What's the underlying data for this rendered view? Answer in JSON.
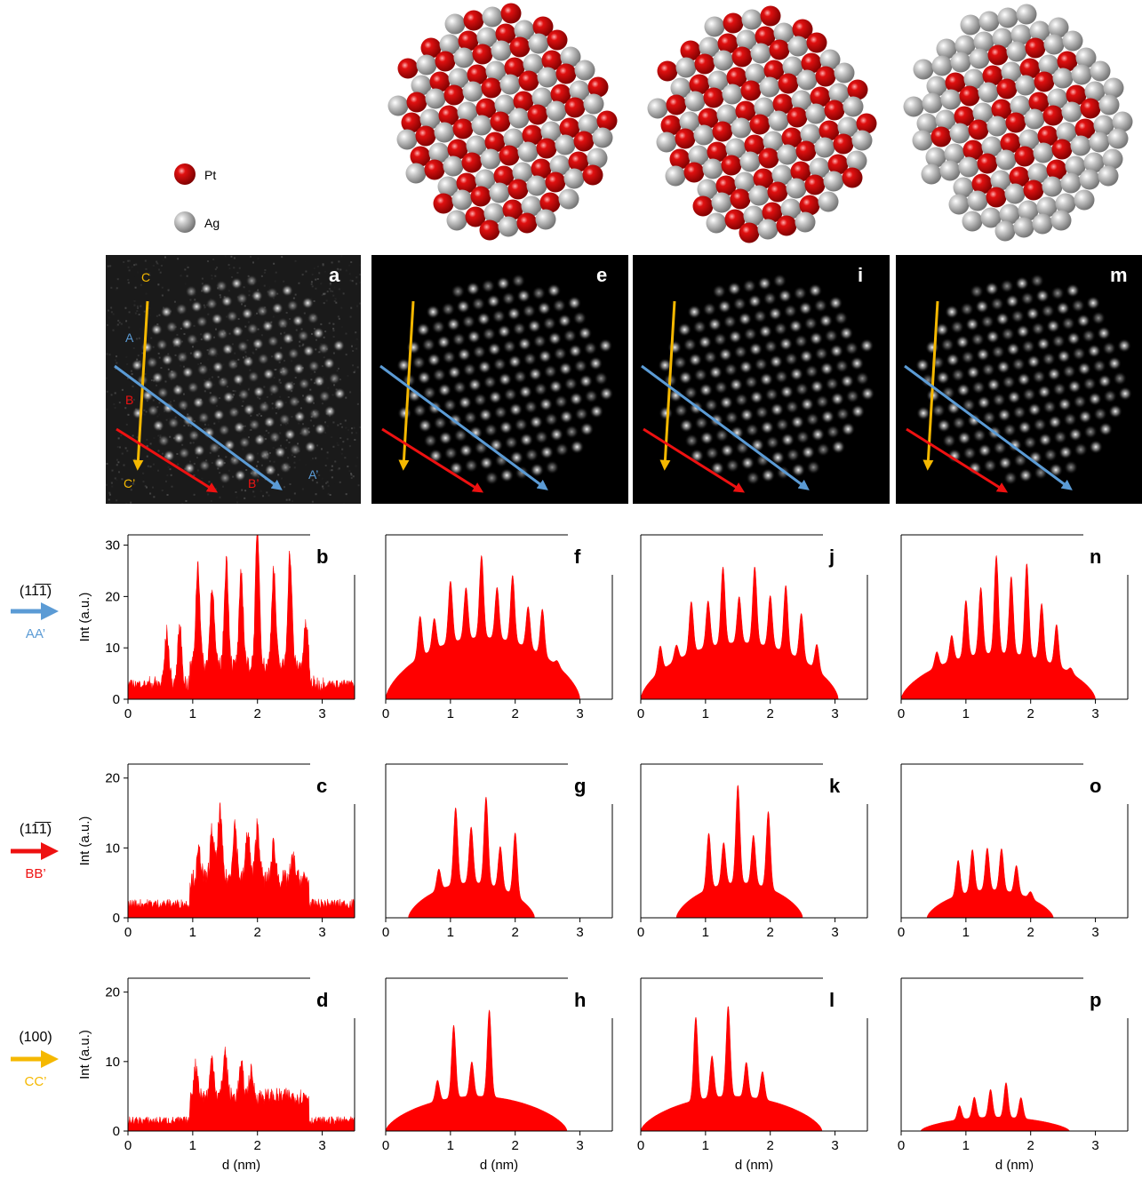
{
  "legend": {
    "items": [
      {
        "label": "Pt",
        "color": "#cc0000"
      },
      {
        "label": "Ag",
        "color": "#b0b0b0"
      }
    ]
  },
  "image_panels": [
    {
      "label": "a",
      "style": "experimental"
    },
    {
      "label": "e",
      "style": "simulated"
    },
    {
      "label": "i",
      "style": "simulated"
    },
    {
      "label": "m",
      "style": "simulated"
    }
  ],
  "line_markers": {
    "A": "A",
    "A_end": "A’",
    "B": "B",
    "B_end": "B’",
    "C": "C",
    "C_end": "C’"
  },
  "direction_labels": [
    {
      "miller": "(11̅1̅)",
      "line": "AA’",
      "color": "#5b9bd5"
    },
    {
      "miller": "(11̅1̅)",
      "line": "BB’",
      "color": "#ee1111"
    },
    {
      "miller": "(100)",
      "line": "CC’",
      "color": "#f5b800"
    }
  ],
  "colors": {
    "fill": "#ff0000",
    "arrow_a": "#5b9bd5",
    "arrow_b": "#ee1111",
    "arrow_c": "#f5b800"
  },
  "chart_data": [
    {
      "type": "area",
      "label": "b",
      "row": "AA’",
      "ylabel": "Int (a.u.)",
      "xlabel": "",
      "xlim": [
        0,
        3.5
      ],
      "ylim": [
        0,
        32
      ],
      "yticks": [
        0,
        10,
        20,
        30
      ],
      "xticks": [
        0,
        1,
        2,
        3
      ],
      "envelope": "flat",
      "bg": 3,
      "x0": 0.0,
      "x1": 3.5,
      "peaks": [
        [
          0.6,
          13
        ],
        [
          0.8,
          14
        ],
        [
          1.08,
          23
        ],
        [
          1.3,
          19
        ],
        [
          1.52,
          24
        ],
        [
          1.75,
          21
        ],
        [
          2.0,
          30
        ],
        [
          2.25,
          22
        ],
        [
          2.5,
          25
        ],
        [
          2.75,
          11
        ]
      ],
      "noise": 0.8
    },
    {
      "type": "area",
      "label": "f",
      "row": "AA’",
      "ylabel": "",
      "xlabel": "",
      "xlim": [
        0,
        3.5
      ],
      "ylim": [
        0,
        32
      ],
      "yticks": [],
      "xticks": [
        0,
        1,
        2,
        3
      ],
      "envelope": "dome",
      "x0": 0.0,
      "x1": 3.0,
      "peaks": [
        [
          0.28,
          8
        ],
        [
          0.53,
          20
        ],
        [
          0.75,
          18
        ],
        [
          1.0,
          24
        ],
        [
          1.24,
          22
        ],
        [
          1.48,
          28
        ],
        [
          1.72,
          22
        ],
        [
          1.96,
          25
        ],
        [
          2.2,
          20
        ],
        [
          2.42,
          21
        ],
        [
          2.65,
          13
        ]
      ],
      "base": 12,
      "noise": 0
    },
    {
      "type": "area",
      "label": "j",
      "row": "AA’",
      "ylabel": "",
      "xlabel": "",
      "xlim": [
        0,
        3.5
      ],
      "ylim": [
        0,
        32
      ],
      "yticks": [],
      "xticks": [
        0,
        1,
        2,
        3
      ],
      "envelope": "dome",
      "x0": 0.0,
      "x1": 3.05,
      "peaks": [
        [
          0.3,
          16
        ],
        [
          0.55,
          14
        ],
        [
          0.78,
          21
        ],
        [
          1.04,
          20
        ],
        [
          1.27,
          26
        ],
        [
          1.52,
          20
        ],
        [
          1.76,
          26
        ],
        [
          2.0,
          21
        ],
        [
          2.24,
          24
        ],
        [
          2.48,
          20
        ],
        [
          2.72,
          16
        ]
      ],
      "base": 11,
      "noise": 0
    },
    {
      "type": "area",
      "label": "n",
      "row": "AA’",
      "ylabel": "",
      "xlabel": "",
      "xlim": [
        0,
        3.5
      ],
      "ylim": [
        0,
        32
      ],
      "yticks": [],
      "xticks": [
        0,
        1,
        2,
        3
      ],
      "envelope": "dome",
      "x0": 0.0,
      "x1": 3.0,
      "peaks": [
        [
          0.35,
          8
        ],
        [
          0.55,
          12
        ],
        [
          0.78,
          14
        ],
        [
          1.0,
          20
        ],
        [
          1.23,
          22
        ],
        [
          1.47,
          28
        ],
        [
          1.7,
          24
        ],
        [
          1.94,
          27
        ],
        [
          2.17,
          20
        ],
        [
          2.4,
          17
        ],
        [
          2.62,
          10
        ]
      ],
      "base": 9,
      "noise": 0
    },
    {
      "type": "area",
      "label": "c",
      "row": "BB’",
      "ylabel": "Int (a.u.)",
      "xlabel": "",
      "xlim": [
        0,
        3.5
      ],
      "ylim": [
        0,
        22
      ],
      "yticks": [
        0,
        10,
        20
      ],
      "xticks": [
        0,
        1,
        2,
        3
      ],
      "envelope": "flat",
      "bg": 2,
      "x0": 0.0,
      "x1": 3.5,
      "peaks": [
        [
          1.1,
          6
        ],
        [
          1.3,
          9
        ],
        [
          1.42,
          12
        ],
        [
          1.65,
          10
        ],
        [
          1.85,
          9
        ],
        [
          2.0,
          10
        ],
        [
          2.25,
          7
        ],
        [
          2.55,
          5
        ]
      ],
      "noise": 0.7
    },
    {
      "type": "area",
      "label": "g",
      "row": "BB’",
      "ylabel": "",
      "xlabel": "",
      "xlim": [
        0,
        3.5
      ],
      "ylim": [
        0,
        22
      ],
      "yticks": [],
      "xticks": [
        0,
        1,
        2,
        3
      ],
      "envelope": "dome",
      "x0": 0.35,
      "x1": 2.3,
      "peaks": [
        [
          0.82,
          8
        ],
        [
          1.08,
          16
        ],
        [
          1.32,
          13
        ],
        [
          1.55,
          17.5
        ],
        [
          1.77,
          11
        ],
        [
          2.0,
          14
        ]
      ],
      "base": 5,
      "noise": 0
    },
    {
      "type": "area",
      "label": "k",
      "row": "BB’",
      "ylabel": "",
      "xlabel": "",
      "xlim": [
        0,
        3.5
      ],
      "ylim": [
        0,
        22
      ],
      "yticks": [],
      "xticks": [
        0,
        1,
        2,
        3
      ],
      "envelope": "dome",
      "x0": 0.55,
      "x1": 2.5,
      "peaks": [
        [
          1.05,
          13
        ],
        [
          1.28,
          11
        ],
        [
          1.5,
          19
        ],
        [
          1.74,
          12
        ],
        [
          1.97,
          16
        ],
        [
          2.2,
          5
        ]
      ],
      "base": 5,
      "noise": 0
    },
    {
      "type": "area",
      "label": "o",
      "row": "BB’",
      "ylabel": "",
      "xlabel": "",
      "xlim": [
        0,
        3.5
      ],
      "ylim": [
        0,
        22
      ],
      "yticks": [],
      "xticks": [
        0,
        1,
        2,
        3
      ],
      "envelope": "dome",
      "x0": 0.4,
      "x1": 2.35,
      "peaks": [
        [
          0.88,
          9
        ],
        [
          1.1,
          10
        ],
        [
          1.33,
          10
        ],
        [
          1.55,
          10
        ],
        [
          1.78,
          8
        ],
        [
          2.0,
          5
        ]
      ],
      "base": 4,
      "noise": 0
    },
    {
      "type": "area",
      "label": "d",
      "row": "CC’",
      "ylabel": "Int (a.u.)",
      "xlabel": "d (nm)",
      "xlim": [
        0,
        3.5
      ],
      "ylim": [
        0,
        22
      ],
      "yticks": [
        0,
        10,
        20
      ],
      "xticks": [
        0,
        1,
        2,
        3
      ],
      "envelope": "flat",
      "bg": 1.5,
      "x0": 0.0,
      "x1": 3.5,
      "peaks": [
        [
          1.05,
          6
        ],
        [
          1.3,
          7
        ],
        [
          1.5,
          8
        ],
        [
          1.75,
          6
        ],
        [
          1.9,
          5
        ]
      ],
      "noise": 0.6
    },
    {
      "type": "area",
      "label": "h",
      "row": "CC’",
      "ylabel": "",
      "xlabel": "d (nm)",
      "xlim": [
        0,
        3.5
      ],
      "ylim": [
        0,
        22
      ],
      "yticks": [],
      "xticks": [
        0,
        1,
        2,
        3
      ],
      "envelope": "dome",
      "x0": 0.0,
      "x1": 2.8,
      "peaks": [
        [
          0.8,
          8
        ],
        [
          1.05,
          15.5
        ],
        [
          1.33,
          10
        ],
        [
          1.6,
          17.5
        ],
        [
          1.88,
          5
        ]
      ],
      "base": 5,
      "noise": 0
    },
    {
      "type": "area",
      "label": "l",
      "row": "CC’",
      "ylabel": "",
      "xlabel": "d (nm)",
      "xlim": [
        0,
        3.5
      ],
      "ylim": [
        0,
        22
      ],
      "yticks": [],
      "xticks": [
        0,
        1,
        2,
        3
      ],
      "envelope": "dome",
      "x0": 0.0,
      "x1": 2.8,
      "peaks": [
        [
          0.85,
          17
        ],
        [
          1.1,
          11
        ],
        [
          1.35,
          18
        ],
        [
          1.63,
          10
        ],
        [
          1.88,
          9
        ],
        [
          2.2,
          3
        ]
      ],
      "base": 5,
      "noise": 0
    },
    {
      "type": "area",
      "label": "p",
      "row": "CC’",
      "ylabel": "",
      "xlabel": "d (nm)",
      "xlim": [
        0,
        3.5
      ],
      "ylim": [
        0,
        22
      ],
      "yticks": [],
      "xticks": [
        0,
        1,
        2,
        3
      ],
      "envelope": "dome",
      "x0": 0.3,
      "x1": 2.6,
      "peaks": [
        [
          0.9,
          4
        ],
        [
          1.13,
          5
        ],
        [
          1.38,
          6
        ],
        [
          1.62,
          7
        ],
        [
          1.85,
          5
        ]
      ],
      "base": 2,
      "noise": 0
    }
  ]
}
